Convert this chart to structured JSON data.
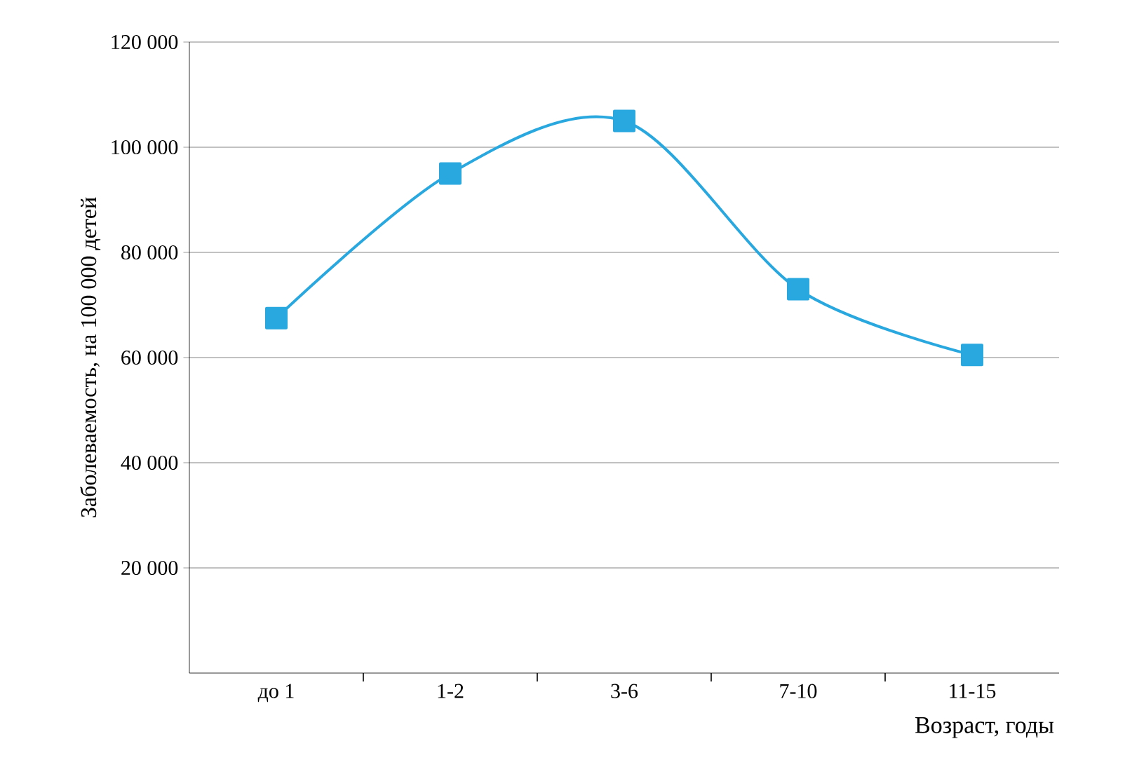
{
  "chart_data": {
    "type": "line",
    "xlabel": "Возраст, годы",
    "ylabel": "Заболеваемость, на 100 000 детей",
    "categories": [
      "до 1",
      "1-2",
      "3-6",
      "7-10",
      "11-15"
    ],
    "series": [
      {
        "color": "#29a8e0",
        "values": [
          67500,
          95000,
          105000,
          73000,
          60500
        ]
      }
    ],
    "ylim": [
      0,
      120000
    ],
    "yticks": [
      {
        "value": 20000,
        "label": "20 000"
      },
      {
        "value": 40000,
        "label": "40 000"
      },
      {
        "value": 60000,
        "label": "60 000"
      },
      {
        "value": 80000,
        "label": "80 000"
      },
      {
        "value": 100000,
        "label": "100 000"
      },
      {
        "value": 120000,
        "label": "120 000"
      }
    ],
    "grid": "y",
    "marker": "square",
    "line_style": "solid"
  }
}
